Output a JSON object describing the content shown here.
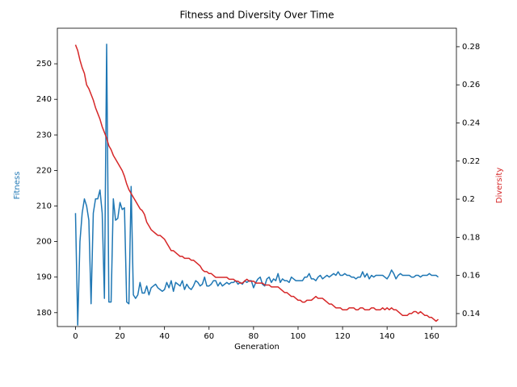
{
  "chart_data": {
    "type": "line",
    "title": "Fitness and Diversity Over Time",
    "xlabel": "Generation",
    "ylabel": "Fitness",
    "y2label": "Diversity",
    "x": [
      0,
      1,
      2,
      3,
      4,
      5,
      6,
      7,
      8,
      9,
      10,
      11,
      12,
      13,
      14,
      15,
      16,
      17,
      18,
      19,
      20,
      21,
      22,
      23,
      24,
      25,
      26,
      27,
      28,
      29,
      30,
      31,
      32,
      33,
      34,
      35,
      36,
      37,
      38,
      39,
      40,
      41,
      42,
      43,
      44,
      45,
      46,
      47,
      48,
      49,
      50,
      51,
      52,
      53,
      54,
      55,
      56,
      57,
      58,
      59,
      60,
      61,
      62,
      63,
      64,
      65,
      66,
      67,
      68,
      69,
      70,
      71,
      72,
      73,
      74,
      75,
      76,
      77,
      78,
      79,
      80,
      81,
      82,
      83,
      84,
      85,
      86,
      87,
      88,
      89,
      90,
      91,
      92,
      93,
      94,
      95,
      96,
      97,
      98,
      99,
      100,
      101,
      102,
      103,
      104,
      105,
      106,
      107,
      108,
      109,
      110,
      111,
      112,
      113,
      114,
      115,
      116,
      117,
      118,
      119,
      120,
      121,
      122,
      123,
      124,
      125,
      126,
      127,
      128,
      129,
      130,
      131,
      132,
      133,
      134,
      135,
      136,
      137,
      138,
      139,
      140,
      141,
      142,
      143,
      144,
      145,
      146,
      147,
      148,
      149,
      150,
      151,
      152,
      153,
      154,
      155,
      156,
      157,
      158,
      159,
      160,
      161,
      162,
      163
    ],
    "series": [
      {
        "color": "#1f77b4",
        "values": [
          208,
          176.5,
          200,
          208,
          212,
          210,
          206,
          182.5,
          208,
          212,
          212,
          214.5,
          208,
          184,
          255.5,
          183,
          183,
          212,
          206,
          206.5,
          211,
          209,
          209.5,
          183,
          182.5,
          215.5,
          185,
          184,
          185,
          188.5,
          185.5,
          185.5,
          187.5,
          185,
          187,
          187.5,
          188,
          187,
          186.5,
          186,
          186.5,
          188.5,
          187,
          189,
          186,
          188.5,
          188,
          187.5,
          189,
          186.5,
          188,
          187,
          186.5,
          187.5,
          189,
          188.5,
          187.5,
          188,
          190,
          187.5,
          187.5,
          188,
          189,
          189,
          187.5,
          188.5,
          187.5,
          188,
          188.5,
          188,
          188.5,
          188.5,
          189,
          188,
          188.5,
          188,
          189,
          188.5,
          189,
          189,
          187,
          188.5,
          189.5,
          190,
          188,
          187.5,
          189.5,
          190,
          188.5,
          189.5,
          189,
          191,
          188.5,
          189.5,
          189,
          189,
          188.5,
          190,
          189.5,
          189,
          189,
          189,
          189,
          190,
          190,
          191,
          189.5,
          189.5,
          189,
          190,
          190.5,
          189.5,
          190,
          190.5,
          190,
          190.5,
          191,
          190.5,
          191.5,
          190.5,
          190.5,
          191,
          190.5,
          190.5,
          190,
          190,
          189.5,
          190,
          190,
          191.5,
          190,
          191,
          189.5,
          190.5,
          190,
          190.5,
          190.5,
          190.5,
          190.5,
          190,
          189.5,
          190.5,
          192,
          191,
          189.5,
          190.5,
          191,
          190.5,
          190.5,
          190.5,
          190.5,
          190,
          190,
          190.5,
          190.5,
          190,
          190.5,
          190.5,
          190.5,
          191,
          190.5,
          190.5,
          190.5,
          190
        ]
      },
      {
        "color": "#d62728",
        "axis": "y2",
        "values": [
          0.281,
          0.278,
          0.273,
          0.269,
          0.266,
          0.26,
          0.258,
          0.255,
          0.252,
          0.248,
          0.245,
          0.242,
          0.238,
          0.235,
          0.232,
          0.228,
          0.226,
          0.223,
          0.221,
          0.219,
          0.217,
          0.215,
          0.212,
          0.208,
          0.205,
          0.203,
          0.201,
          0.199,
          0.197,
          0.195,
          0.194,
          0.192,
          0.188,
          0.186,
          0.184,
          0.183,
          0.182,
          0.181,
          0.181,
          0.18,
          0.179,
          0.177,
          0.175,
          0.173,
          0.173,
          0.172,
          0.171,
          0.17,
          0.17,
          0.169,
          0.169,
          0.169,
          0.168,
          0.168,
          0.167,
          0.166,
          0.165,
          0.163,
          0.162,
          0.162,
          0.161,
          0.161,
          0.16,
          0.159,
          0.159,
          0.159,
          0.159,
          0.159,
          0.159,
          0.158,
          0.158,
          0.158,
          0.157,
          0.157,
          0.156,
          0.156,
          0.157,
          0.158,
          0.157,
          0.157,
          0.157,
          0.156,
          0.156,
          0.156,
          0.156,
          0.155,
          0.155,
          0.155,
          0.154,
          0.154,
          0.154,
          0.154,
          0.153,
          0.152,
          0.151,
          0.151,
          0.15,
          0.149,
          0.149,
          0.148,
          0.147,
          0.147,
          0.146,
          0.146,
          0.147,
          0.147,
          0.147,
          0.148,
          0.149,
          0.148,
          0.148,
          0.148,
          0.147,
          0.146,
          0.145,
          0.145,
          0.144,
          0.143,
          0.143,
          0.143,
          0.142,
          0.142,
          0.142,
          0.143,
          0.143,
          0.143,
          0.142,
          0.142,
          0.143,
          0.143,
          0.142,
          0.142,
          0.142,
          0.143,
          0.143,
          0.142,
          0.142,
          0.142,
          0.143,
          0.142,
          0.143,
          0.142,
          0.143,
          0.142,
          0.142,
          0.141,
          0.14,
          0.139,
          0.139,
          0.139,
          0.14,
          0.14,
          0.141,
          0.141,
          0.14,
          0.141,
          0.14,
          0.139,
          0.139,
          0.138,
          0.138,
          0.137,
          0.136,
          0.137
        ]
      }
    ],
    "xlim": [
      -8.15,
      171.15
    ],
    "xticks": [
      0,
      20,
      40,
      60,
      80,
      100,
      120,
      140,
      160
    ],
    "ylim": [
      176.1,
      260
    ],
    "yticks": [
      180,
      190,
      200,
      210,
      220,
      230,
      240,
      250
    ],
    "y2lim": [
      0.1332,
      0.2897
    ],
    "y2ticks": [
      0.14,
      0.16,
      0.18,
      0.2,
      0.22,
      0.24,
      0.26,
      0.28
    ]
  }
}
